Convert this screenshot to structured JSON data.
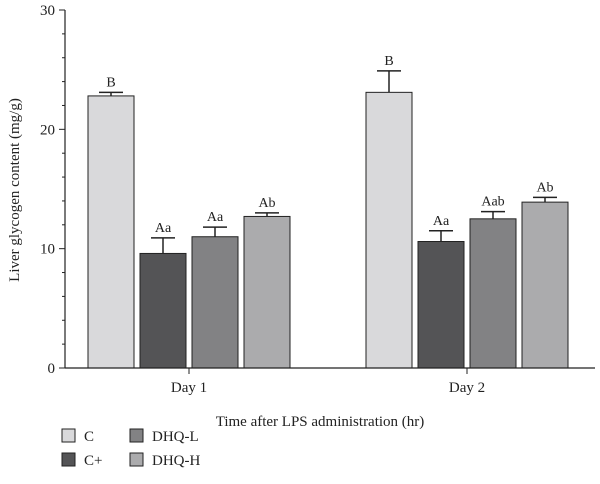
{
  "chart_data": {
    "type": "bar",
    "title": "",
    "xlabel": "Time after LPS administration (hr)",
    "ylabel": "Liver glycogen content (mg/g)",
    "ylim": [
      0,
      30
    ],
    "yticks": [
      "0",
      "10",
      "20",
      "30"
    ],
    "categories": [
      "Day 1",
      "Day 2"
    ],
    "grid": false,
    "legend_position": "bottom-left",
    "series": [
      {
        "name": "C",
        "color": "#d9d9db",
        "values": [
          22.8,
          23.1
        ],
        "errors": [
          0.3,
          1.8
        ],
        "labels": [
          "B",
          "B"
        ]
      },
      {
        "name": "C+",
        "color": "#545456",
        "values": [
          9.6,
          10.6
        ],
        "errors": [
          1.3,
          0.9
        ],
        "labels": [
          "Aa",
          "Aa"
        ]
      },
      {
        "name": "DHQ-L",
        "color": "#828284",
        "values": [
          11.0,
          12.5
        ],
        "errors": [
          0.8,
          0.6
        ],
        "labels": [
          "Aa",
          "Aab"
        ]
      },
      {
        "name": "DHQ-H",
        "color": "#ababad",
        "values": [
          12.7,
          13.9
        ],
        "errors": [
          0.3,
          0.4
        ],
        "labels": [
          "Ab",
          "Ab"
        ]
      }
    ]
  }
}
